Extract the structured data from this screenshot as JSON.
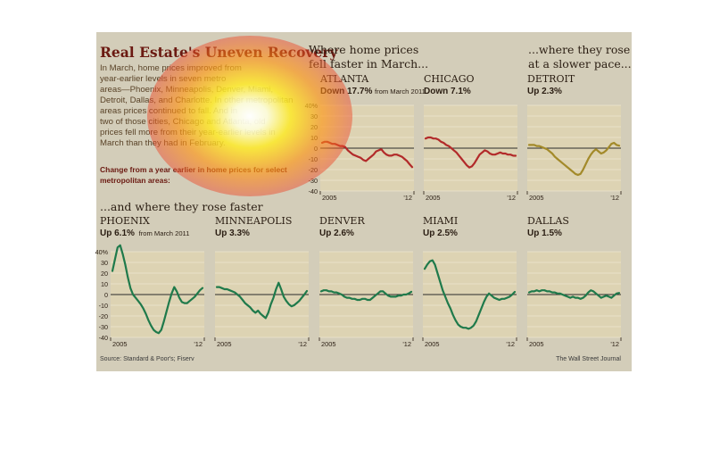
{
  "header": {
    "title": "Real Estate's Uneven Recovery",
    "intro_lines": [
      "In March, home prices improved from",
      "year-earlier levels in seven metro",
      "areas—Phoenix, Minneapolis, Denver, Miami,",
      "Detroit, Dallas, and Charlotte. In other metropolitan",
      "areas prices continued to fall. And in",
      "two of those cities, Chicago and Atlanta, old",
      "prices fell more from their year-earlier levels in",
      "March than they had in February."
    ],
    "subhead_lines": [
      "Change from a year earlier in home prices for select",
      "metropolitan areas:"
    ]
  },
  "kickers": {
    "fell_line1": "Where home prices",
    "fell_line2": "fell faster in March...",
    "slower_line1": "...where they rose",
    "slower_line2": "at a slower pace...",
    "faster": "...and where they rose faster"
  },
  "footer": {
    "source": "Source: Standard & Poor's; Fiserv",
    "credit": "The Wall Street Journal"
  },
  "colors": {
    "background": "#d3cdb9",
    "plot_bg": "#ddd3b3",
    "gridline": "#ece5cf",
    "zero_line": "#2b2b2b",
    "fell": "#b22a2a",
    "slower": "#a38a2a",
    "faster": "#1f7a4b",
    "title": "#6b1a12",
    "subhead": "#6b1a12"
  },
  "chart_data": [
    {
      "type": "line",
      "group": "fell",
      "name": "ATLANTA",
      "change": "Down 17.7%",
      "note": "from March 2011",
      "x_start": "2005",
      "x_end": "'12",
      "ylim": [
        -40,
        40
      ],
      "yticks": [
        "40%",
        "30",
        "20",
        "10",
        "0",
        "-10",
        "-20",
        "-30",
        "-40"
      ],
      "values": [
        5,
        6,
        6,
        5,
        4,
        4,
        3,
        2,
        2,
        1,
        -2,
        -4,
        -6,
        -7,
        -8,
        -9,
        -11,
        -12,
        -10,
        -8,
        -6,
        -3,
        -2,
        -1,
        -4,
        -6,
        -7,
        -7,
        -6,
        -6,
        -7,
        -8,
        -10,
        -12,
        -15,
        -17.7
      ]
    },
    {
      "type": "line",
      "group": "fell",
      "name": "CHICAGO",
      "change": "Down 7.1%",
      "note": "",
      "x_start": "2005",
      "x_end": "'12",
      "ylim": [
        -40,
        40
      ],
      "values": [
        9,
        10,
        10,
        9,
        9,
        8,
        6,
        5,
        3,
        2,
        0,
        -2,
        -4,
        -7,
        -10,
        -13,
        -16,
        -18,
        -17,
        -14,
        -10,
        -6,
        -4,
        -2,
        -3,
        -5,
        -6,
        -6,
        -5,
        -4,
        -5,
        -5,
        -6,
        -6,
        -7,
        -7.1
      ]
    },
    {
      "type": "line",
      "group": "slower",
      "name": "DETROIT",
      "change": "Up 2.3%",
      "note": "",
      "x_start": "2005",
      "x_end": "'12",
      "ylim": [
        -40,
        40
      ],
      "values": [
        3,
        3,
        3,
        2,
        2,
        1,
        0,
        -1,
        -3,
        -5,
        -8,
        -10,
        -12,
        -14,
        -16,
        -18,
        -20,
        -22,
        -24,
        -25,
        -24,
        -20,
        -15,
        -10,
        -6,
        -3,
        -1,
        -3,
        -5,
        -4,
        -2,
        1,
        4,
        5,
        3,
        2.3
      ]
    },
    {
      "type": "line",
      "group": "faster",
      "name": "PHOENIX",
      "change": "Up 6.1%",
      "note": "from March 2011",
      "x_start": "2005",
      "x_end": "'12",
      "ylim": [
        -40,
        40
      ],
      "yticks": [
        "40%",
        "30",
        "20",
        "10",
        "0",
        "-10",
        "-20",
        "-30",
        "-40"
      ],
      "values": [
        22,
        33,
        44,
        46,
        38,
        28,
        16,
        6,
        0,
        -3,
        -6,
        -9,
        -13,
        -18,
        -24,
        -29,
        -33,
        -35,
        -36,
        -33,
        -25,
        -16,
        -7,
        1,
        7,
        3,
        -3,
        -7,
        -8,
        -8,
        -6,
        -4,
        -2,
        1,
        4,
        6.1
      ]
    },
    {
      "type": "line",
      "group": "faster",
      "name": "MINNEAPOLIS",
      "change": "Up 3.3%",
      "note": "",
      "x_start": "2005",
      "x_end": "'12",
      "ylim": [
        -40,
        40
      ],
      "values": [
        7,
        7,
        6,
        5,
        5,
        4,
        3,
        2,
        0,
        -2,
        -5,
        -8,
        -10,
        -12,
        -15,
        -17,
        -15,
        -18,
        -20,
        -22,
        -17,
        -9,
        -3,
        5,
        11,
        5,
        -2,
        -6,
        -9,
        -11,
        -10,
        -8,
        -6,
        -3,
        0,
        3.3
      ]
    },
    {
      "type": "line",
      "group": "faster",
      "name": "DENVER",
      "change": "Up 2.6%",
      "note": "",
      "x_start": "2005",
      "x_end": "'12",
      "ylim": [
        -40,
        40
      ],
      "values": [
        3,
        4,
        4,
        3,
        3,
        2,
        2,
        1,
        0,
        -2,
        -3,
        -3,
        -4,
        -4,
        -5,
        -5,
        -4,
        -4,
        -5,
        -5,
        -3,
        -1,
        1,
        3,
        3,
        1,
        -1,
        -2,
        -2,
        -2,
        -1,
        -1,
        0,
        0,
        1,
        2.6
      ]
    },
    {
      "type": "line",
      "group": "faster",
      "name": "MIAMI",
      "change": "Up 2.5%",
      "note": "",
      "x_start": "2005",
      "x_end": "'12",
      "ylim": [
        -40,
        40
      ],
      "values": [
        24,
        28,
        31,
        32,
        28,
        20,
        12,
        4,
        -2,
        -8,
        -13,
        -19,
        -24,
        -28,
        -30,
        -31,
        -31,
        -32,
        -31,
        -29,
        -25,
        -19,
        -13,
        -7,
        -2,
        1,
        -1,
        -3,
        -4,
        -5,
        -4,
        -4,
        -3,
        -2,
        0,
        2.5
      ]
    },
    {
      "type": "line",
      "group": "faster",
      "name": "DALLAS",
      "change": "Up 1.5%",
      "note": "",
      "x_start": "2005",
      "x_end": "'12",
      "ylim": [
        -40,
        40
      ],
      "values": [
        2,
        3,
        3,
        4,
        3,
        4,
        4,
        3,
        3,
        2,
        2,
        1,
        1,
        0,
        -1,
        -2,
        -3,
        -2,
        -3,
        -3,
        -4,
        -3,
        -1,
        2,
        4,
        3,
        1,
        -1,
        -3,
        -2,
        -1,
        -2,
        -3,
        -1,
        1,
        1.5
      ]
    }
  ]
}
